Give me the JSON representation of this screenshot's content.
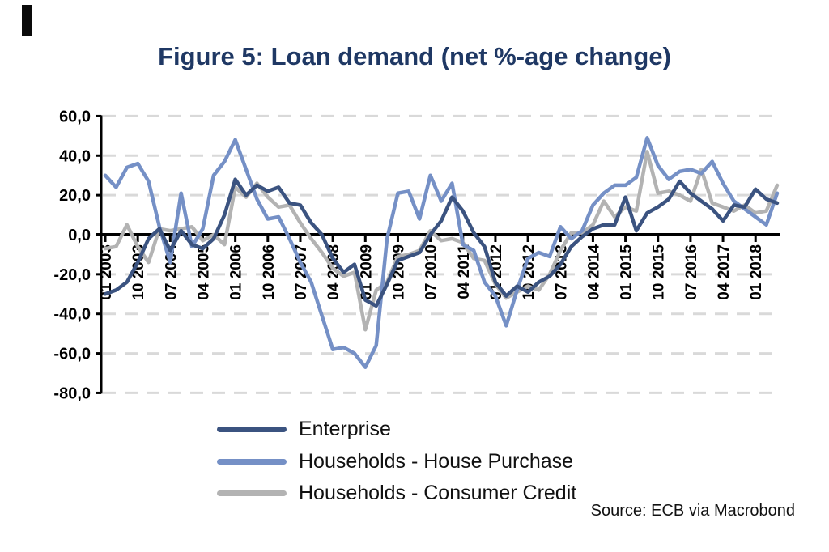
{
  "page": {
    "title": "Figure 5: Loan demand (net %-age change)",
    "source": "Source: ECB via Macrobond"
  },
  "legend": {
    "items": [
      {
        "label": "Enterprise",
        "color": "#3B5380"
      },
      {
        "label": "Households - House Purchase",
        "color": "#7590C6"
      },
      {
        "label": "Households - Consumer Credit",
        "color": "#B3B3B3"
      }
    ]
  },
  "chart_data": {
    "type": "line",
    "title": "Figure 5: Loan demand (net %-age change)",
    "xlabel": "",
    "ylabel": "",
    "ylim": [
      -80,
      60
    ],
    "grid": "horizontal-dashed",
    "gridline_color": "#D9D9D9",
    "axis_color": "#000000",
    "legend_position": "bottom",
    "y_ticks": [
      {
        "value": 60,
        "label": "60,0"
      },
      {
        "value": 40,
        "label": "40,0"
      },
      {
        "value": 20,
        "label": "20,0"
      },
      {
        "value": 0,
        "label": "0,0"
      },
      {
        "value": -20,
        "label": "-20,0"
      },
      {
        "value": -40,
        "label": "-40,0"
      },
      {
        "value": -60,
        "label": "-60,0"
      },
      {
        "value": -80,
        "label": "-80,0"
      }
    ],
    "x_tick_labels": [
      "01 2003",
      "10 2003",
      "07 2004",
      "04 2005",
      "01 2006",
      "10 2006",
      "07 2007",
      "04 2008",
      "01 2009",
      "10 2009",
      "07 2010",
      "04 2011",
      "01 2012",
      "10 2012",
      "07 2013",
      "04 2014",
      "01 2015",
      "10 2015",
      "07 2016",
      "04 2017",
      "01 2018"
    ],
    "points_per_tick": 3,
    "frequency": "quarterly",
    "series": [
      {
        "name": "Enterprise",
        "color": "#3B5380",
        "values": [
          -30,
          -28,
          -24,
          -14,
          -2,
          3,
          -8,
          2,
          -5,
          -7,
          -2,
          10,
          28,
          20,
          25,
          22,
          24,
          16,
          15,
          6,
          0,
          -12,
          -19,
          -15,
          -33,
          -36,
          -25,
          -13,
          -11,
          -9,
          0,
          7,
          19,
          12,
          1,
          -6,
          -24,
          -31,
          -26,
          -29,
          -24,
          -21,
          -15,
          -6,
          -1,
          3,
          5,
          5,
          19,
          2,
          11,
          14,
          18,
          27,
          21,
          17,
          13,
          7,
          15,
          14,
          23,
          18,
          16
        ]
      },
      {
        "name": "Households - House Purchase",
        "color": "#7590C6",
        "values": [
          30,
          24,
          34,
          36,
          27,
          4,
          -14,
          21,
          -6,
          3,
          30,
          37,
          48,
          33,
          18,
          8,
          9,
          -2,
          -14,
          -24,
          -41,
          -58,
          -57,
          -60,
          -67,
          -56,
          -2,
          21,
          22,
          8,
          30,
          17,
          26,
          -5,
          -8,
          -24,
          -31,
          -46,
          -28,
          -12,
          -9,
          -11,
          4,
          -2,
          2,
          15,
          21,
          25,
          25,
          29,
          49,
          35,
          28,
          32,
          33,
          31,
          37,
          26,
          17,
          13,
          9,
          5,
          21
        ]
      },
      {
        "name": "Households - Consumer Credit",
        "color": "#B3B3B3",
        "values": [
          -7,
          -6,
          5,
          -6,
          -14,
          3,
          2,
          3,
          4,
          -3,
          0,
          -5,
          24,
          19,
          26,
          19,
          14,
          15,
          6,
          -2,
          -9,
          -17,
          -21,
          -19,
          -48,
          -28,
          -24,
          -11,
          -10,
          -8,
          2,
          -3,
          -2,
          -4,
          -12,
          -13,
          -25,
          -32,
          -29,
          -26,
          -28,
          -20,
          -8,
          1,
          1,
          5,
          17,
          9,
          14,
          12,
          42,
          21,
          22,
          20,
          17,
          33,
          16,
          14,
          12,
          15,
          11,
          12,
          25
        ]
      }
    ]
  }
}
